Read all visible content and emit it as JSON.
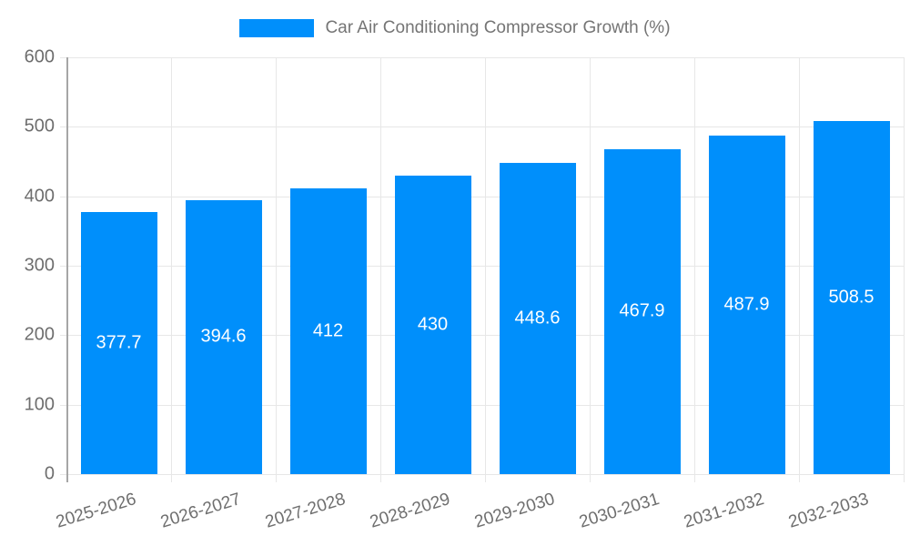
{
  "legend": {
    "series_label": "Car Air Conditioning Compressor Growth (%)"
  },
  "colors": {
    "bar": "#008FFB",
    "grid": "#e7e7e7",
    "axis_line": "#a6a6a6",
    "axis_text": "#6e6e6e",
    "legend_text": "#757575",
    "bar_label_text": "#ffffff",
    "background": "#ffffff"
  },
  "chart_data": {
    "type": "bar",
    "title": "Car Air Conditioning Compressor Growth (%)",
    "categories": [
      "2025-2026",
      "2026-2027",
      "2027-2028",
      "2028-2029",
      "2029-2030",
      "2030-2031",
      "2031-2032",
      "2032-2033"
    ],
    "values": [
      377.7,
      394.6,
      412,
      430,
      448.6,
      467.9,
      487.9,
      508.5
    ],
    "value_labels": [
      "377.7",
      "394.6",
      "412",
      "430",
      "448.6",
      "467.9",
      "487.9",
      "508.5"
    ],
    "xlabel": "",
    "ylabel": "",
    "ylim": [
      0,
      600
    ],
    "ytick_labels": [
      "0",
      "100",
      "200",
      "300",
      "400",
      "500",
      "600"
    ],
    "grid": "on",
    "legend_position": "top",
    "series": [
      {
        "name": "Car Air Conditioning Compressor Growth (%)",
        "values": [
          377.7,
          394.6,
          412,
          430,
          448.6,
          467.9,
          487.9,
          508.5
        ]
      }
    ]
  }
}
